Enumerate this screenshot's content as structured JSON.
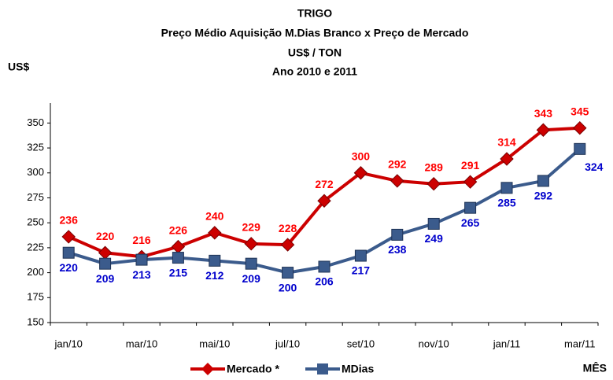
{
  "chart_data": {
    "type": "line",
    "title": [
      "TRIGO",
      "Preço Médio Aquisição M.Dias Branco x Preço de Mercado",
      "US$ / TON",
      "Ano 2010 e 2011"
    ],
    "y_label": "US$",
    "x_label": "MÊS",
    "categories": [
      "jan/10",
      null,
      "mar/10",
      null,
      "mai/10",
      null,
      "jul/10",
      null,
      "set/10",
      null,
      "nov/10",
      null,
      "jan/11",
      null,
      "mar/11"
    ],
    "series": [
      {
        "name": "Mercado *",
        "color": "#cc0000",
        "label_color": "#ff0000",
        "marker": "diamond",
        "values": [
          236,
          220,
          216,
          226,
          240,
          229,
          228,
          272,
          300,
          292,
          289,
          291,
          314,
          343,
          345
        ]
      },
      {
        "name": "MDias",
        "color": "#3b5b8c",
        "label_color": "#0000cc",
        "marker": "square",
        "values": [
          220,
          209,
          213,
          215,
          212,
          209,
          200,
          206,
          217,
          238,
          249,
          265,
          285,
          292,
          324
        ]
      }
    ],
    "ylim": [
      150,
      370
    ],
    "yticks": [
      150,
      175,
      200,
      225,
      250,
      275,
      300,
      325,
      350
    ],
    "grid": false,
    "legend": "bottom"
  }
}
